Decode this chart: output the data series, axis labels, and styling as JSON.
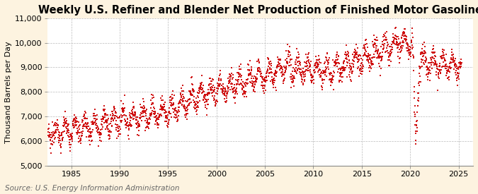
{
  "title": "Weekly U.S. Refiner and Blender Net Production of Finished Motor Gasoline",
  "ylabel": "Thousand Barrels per Day",
  "source": "Source: U.S. Energy Information Administration",
  "xlim": [
    1982.5,
    2026.5
  ],
  "ylim": [
    5000,
    11000
  ],
  "yticks": [
    5000,
    6000,
    7000,
    8000,
    9000,
    10000,
    11000
  ],
  "xticks": [
    1985,
    1990,
    1995,
    2000,
    2005,
    2010,
    2015,
    2020,
    2025
  ],
  "dot_color": "#cc0000",
  "background_color": "#fdf3e0",
  "plot_bg_color": "#ffffff",
  "grid_color": "#bbbbbb",
  "title_fontsize": 10.5,
  "label_fontsize": 8,
  "tick_fontsize": 8,
  "source_fontsize": 7.5
}
